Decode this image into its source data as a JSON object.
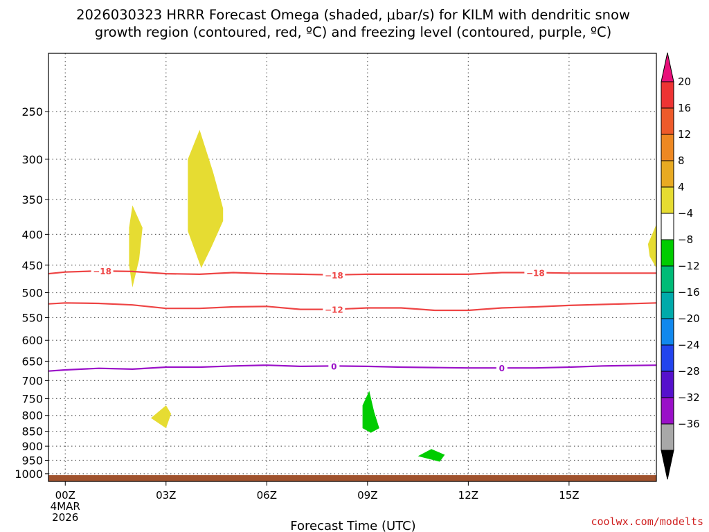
{
  "title_line1": "2026030323 HRRR Forecast Omega (shaded, μbar/s) for KILM with dendritic snow",
  "title_line2": "growth region (contoured, red, ºC) and freezing level (contoured, purple, ºC)",
  "credit": "coolwx.com/modelts",
  "chart_data": {
    "type": "time-height",
    "title": "2026030323 HRRR Forecast Omega (shaded, μbar/s) for KILM with dendritic snow growth region (contoured, red, ºC) and freezing level (contoured, purple, ºC)",
    "xlabel": "Forecast Time (UTC)",
    "ylabel": "",
    "x_unit": "hours after 00Z 4MAR2026",
    "xlim": [
      -0.5,
      17.6
    ],
    "y_scale": "log-pressure",
    "ylim": [
      1030,
      200
    ],
    "grid": true,
    "x_ticks": [
      {
        "value": 0,
        "label": "00Z",
        "sub1": "4MAR",
        "sub2": "2026"
      },
      {
        "value": 3,
        "label": "03Z"
      },
      {
        "value": 6,
        "label": "06Z"
      },
      {
        "value": 9,
        "label": "09Z"
      },
      {
        "value": 12,
        "label": "12Z"
      },
      {
        "value": 15,
        "label": "15Z"
      }
    ],
    "y_ticks": [
      250,
      300,
      350,
      400,
      450,
      500,
      550,
      600,
      650,
      700,
      750,
      800,
      850,
      900,
      950,
      1000
    ],
    "contours": [
      {
        "name": "-18",
        "color": "#ee4444",
        "points": [
          [
            -0.5,
            465
          ],
          [
            0,
            462
          ],
          [
            1,
            460
          ],
          [
            2,
            461
          ],
          [
            3,
            465
          ],
          [
            4,
            466
          ],
          [
            5,
            463
          ],
          [
            6,
            465
          ],
          [
            7,
            466
          ],
          [
            8,
            467
          ],
          [
            9,
            466
          ],
          [
            10,
            466
          ],
          [
            11,
            466
          ],
          [
            12,
            466
          ],
          [
            13,
            463
          ],
          [
            14,
            463
          ],
          [
            15,
            464
          ],
          [
            16,
            464
          ],
          [
            17.6,
            464
          ]
        ],
        "labels": [
          1.1,
          8.0,
          14.0
        ]
      },
      {
        "name": "-12",
        "color": "#ee4444",
        "points": [
          [
            -0.5,
            522
          ],
          [
            0,
            520
          ],
          [
            1,
            521
          ],
          [
            2,
            524
          ],
          [
            3,
            531
          ],
          [
            4,
            531
          ],
          [
            5,
            528
          ],
          [
            6,
            527
          ],
          [
            7,
            533
          ],
          [
            8,
            533
          ],
          [
            9,
            530
          ],
          [
            10,
            530
          ],
          [
            11,
            535
          ],
          [
            12,
            535
          ],
          [
            13,
            530
          ],
          [
            14,
            528
          ],
          [
            15,
            525
          ],
          [
            16,
            523
          ],
          [
            17.6,
            520
          ]
        ],
        "labels": [
          8.0
        ]
      },
      {
        "name": "0",
        "color": "#9a10c8",
        "points": [
          [
            -0.5,
            675
          ],
          [
            0,
            672
          ],
          [
            1,
            668
          ],
          [
            2,
            670
          ],
          [
            3,
            665
          ],
          [
            4,
            665
          ],
          [
            5,
            662
          ],
          [
            6,
            660
          ],
          [
            7,
            663
          ],
          [
            8,
            662
          ],
          [
            9,
            663
          ],
          [
            10,
            665
          ],
          [
            11,
            666
          ],
          [
            12,
            667
          ],
          [
            13,
            667
          ],
          [
            14,
            667
          ],
          [
            15,
            665
          ],
          [
            16,
            662
          ],
          [
            17.6,
            660
          ]
        ],
        "labels": [
          8.0,
          13.0
        ]
      }
    ],
    "omega_patches": [
      {
        "color": "#e6dc32",
        "points": [
          [
            2.0,
            358
          ],
          [
            2.3,
            390
          ],
          [
            2.2,
            440
          ],
          [
            2.0,
            490
          ],
          [
            1.9,
            450
          ],
          [
            1.9,
            390
          ]
        ]
      },
      {
        "color": "#e6dc32",
        "points": [
          [
            4.0,
            268
          ],
          [
            4.4,
            315
          ],
          [
            4.7,
            362
          ],
          [
            4.7,
            380
          ],
          [
            4.35,
            420
          ],
          [
            4.05,
            455
          ],
          [
            3.65,
            395
          ],
          [
            3.65,
            300
          ]
        ]
      },
      {
        "color": "#e6dc32",
        "points": [
          [
            17.6,
            385
          ],
          [
            17.6,
            455
          ],
          [
            17.4,
            435
          ],
          [
            17.35,
            415
          ]
        ]
      },
      {
        "color": "#e6dc32",
        "points": [
          [
            3.0,
            770
          ],
          [
            3.15,
            795
          ],
          [
            3.0,
            840
          ],
          [
            2.55,
            808
          ]
        ]
      },
      {
        "color": "#00cc00",
        "points": [
          [
            9.05,
            728
          ],
          [
            9.2,
            790
          ],
          [
            9.35,
            840
          ],
          [
            9.1,
            855
          ],
          [
            8.85,
            840
          ],
          [
            8.85,
            770
          ]
        ]
      },
      {
        "color": "#00cc00",
        "points": [
          [
            10.9,
            910
          ],
          [
            11.3,
            930
          ],
          [
            11.15,
            955
          ],
          [
            10.5,
            935
          ]
        ]
      }
    ],
    "surface_bar": {
      "color": "#a0522d"
    },
    "colorbar": {
      "tick_labels": [
        "20",
        "16",
        "12",
        "8",
        "4",
        "−4",
        "−8",
        "−12",
        "−16",
        "−20",
        "−24",
        "−28",
        "−32",
        "−36"
      ],
      "colors": [
        "#e8107a",
        "#ee3333",
        "#ee5a2a",
        "#ee8822",
        "#e8aa22",
        "#e6dc32",
        "#ffffff",
        "#00cc00",
        "#00bb77",
        "#00aaaa",
        "#1188ee",
        "#2244ee",
        "#5511cc",
        "#9a10c8",
        "#a8a8a8",
        "#000000"
      ]
    }
  }
}
